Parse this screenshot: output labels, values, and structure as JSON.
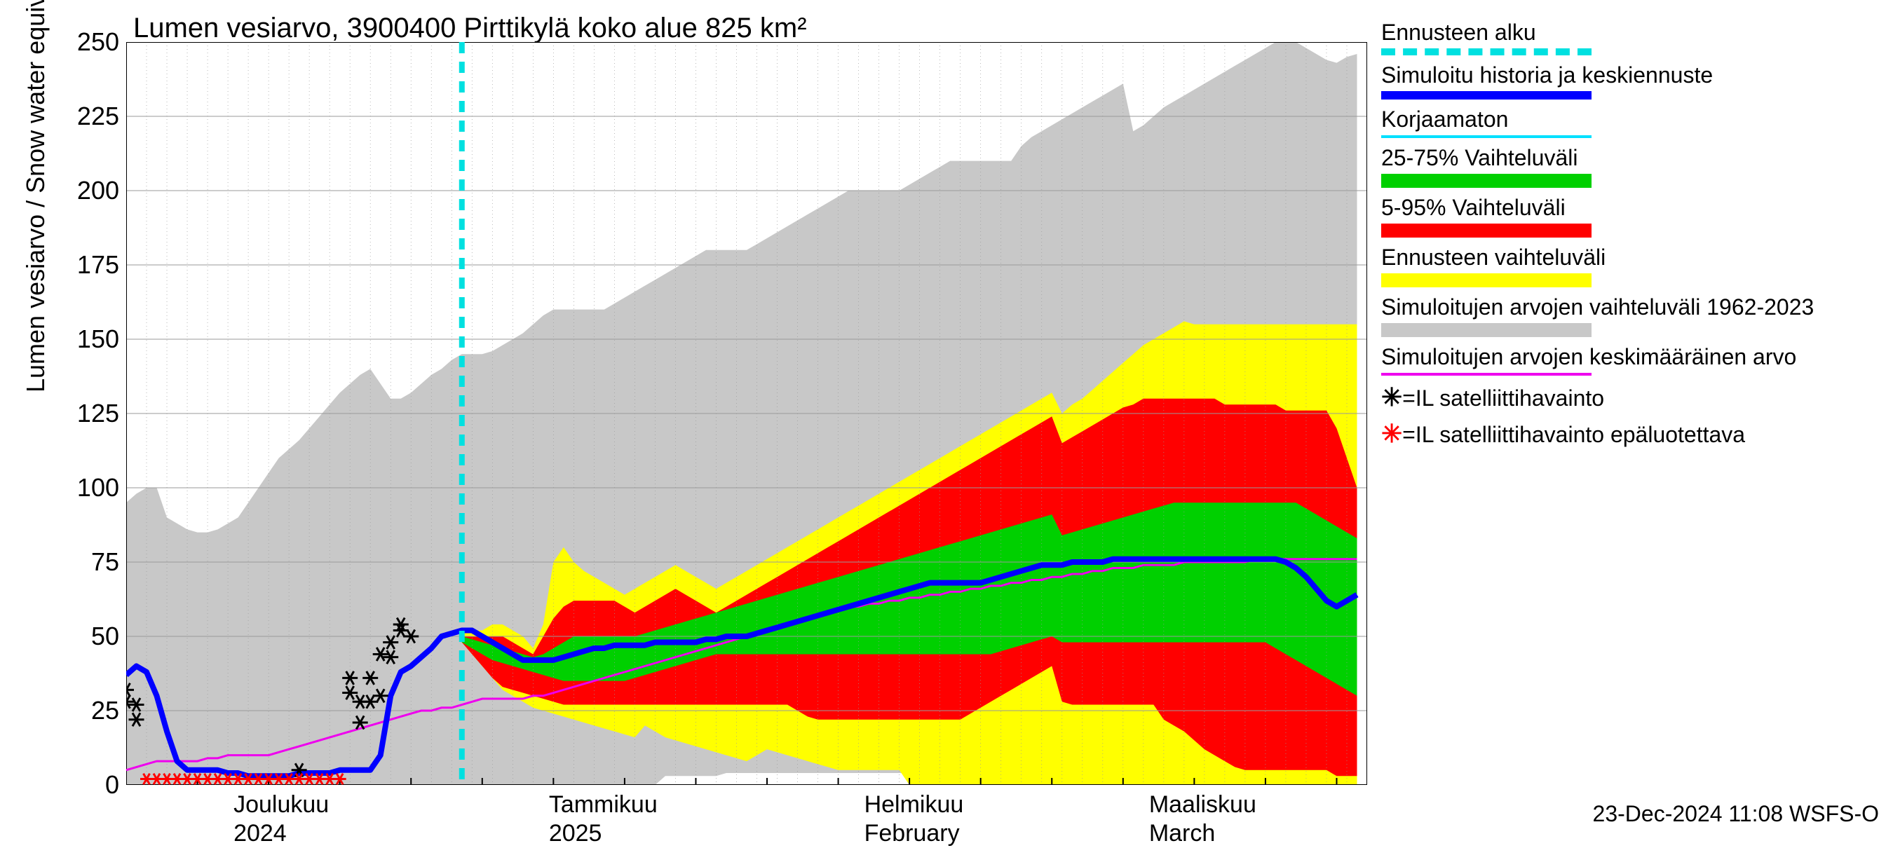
{
  "chart": {
    "type": "area-line-forecast",
    "title": "Lumen vesiarvo, 3900400 Pirttikylä koko alue 825 km²",
    "ylabel": "Lumen vesiarvo / Snow water equiv.    mm",
    "ylim": [
      0,
      250
    ],
    "ytick_step": 25,
    "yticks": [
      0,
      25,
      50,
      75,
      100,
      125,
      150,
      175,
      200,
      225,
      250
    ],
    "x_start": "2024-11-20",
    "x_end": "2025-03-22",
    "x_days": 122,
    "forecast_start_day": 33,
    "background_color": "#ffffff",
    "grid_color": "#9a9a9a",
    "minor_grid": true,
    "colors": {
      "forecast_start": "#00e0e0",
      "main_line": "#0000ff",
      "uncorrected": "#00e0ff",
      "p25_75": "#00d000",
      "p5_95": "#ff0000",
      "forecast_range": "#ffff00",
      "historical_band": "#c8c8c8",
      "historical_mean": "#ee00ee",
      "sat_black": "#000000",
      "sat_red": "#ff0000"
    },
    "line_widths": {
      "main_line": 8,
      "mean_line": 3,
      "forecast_dash": 8
    },
    "x_month_labels": [
      {
        "label_top": "Joulukuu",
        "label_bot": "2024",
        "day": 10
      },
      {
        "label_top": "Tammikuu",
        "label_bot": "2025",
        "day": 41
      },
      {
        "label_top": "Helmikuu",
        "label_bot": "February",
        "day": 72
      },
      {
        "label_top": "Maaliskuu",
        "label_bot": "March",
        "day": 100
      }
    ],
    "historical_band_upper": [
      95,
      98,
      100,
      100,
      90,
      88,
      86,
      85,
      85,
      86,
      88,
      90,
      95,
      100,
      105,
      110,
      113,
      116,
      120,
      124,
      128,
      132,
      135,
      138,
      140,
      135,
      130,
      130,
      132,
      135,
      138,
      140,
      143,
      145,
      145,
      145,
      146,
      148,
      150,
      152,
      155,
      158,
      160,
      160,
      160,
      160,
      160,
      160,
      162,
      164,
      166,
      168,
      170,
      172,
      174,
      176,
      178,
      180,
      180,
      180,
      180,
      180,
      182,
      184,
      186,
      188,
      190,
      192,
      194,
      196,
      198,
      200,
      200,
      200,
      200,
      200,
      200,
      202,
      204,
      206,
      208,
      210,
      210,
      210,
      210,
      210,
      210,
      210,
      215,
      218,
      220,
      222,
      224,
      226,
      228,
      230,
      232,
      234,
      236,
      220,
      222,
      225,
      228,
      230,
      232,
      234,
      236,
      238,
      240,
      242,
      244,
      246,
      248,
      250,
      250,
      250,
      248,
      246,
      244,
      243,
      245,
      246
    ],
    "historical_band_lower": [
      0,
      0,
      0,
      0,
      0,
      0,
      0,
      0,
      0,
      0,
      0,
      0,
      0,
      0,
      0,
      0,
      0,
      0,
      0,
      0,
      0,
      0,
      0,
      0,
      0,
      0,
      0,
      0,
      0,
      0,
      0,
      0,
      0,
      0,
      0,
      0,
      0,
      0,
      0,
      0,
      0,
      0,
      0,
      0,
      0,
      0,
      0,
      0,
      0,
      0,
      0,
      0,
      0,
      3,
      3,
      3,
      3,
      3,
      3,
      4,
      4,
      4,
      4,
      4,
      4,
      4,
      4,
      4,
      4,
      4,
      4,
      4,
      4,
      4,
      4,
      4,
      4,
      4,
      4,
      4,
      4,
      4,
      4,
      4,
      4,
      4,
      4,
      4,
      4,
      4,
      4,
      4,
      4,
      4,
      4,
      4,
      4,
      4,
      4,
      4,
      3,
      3,
      2,
      1,
      0,
      0,
      0,
      0,
      0,
      0,
      0,
      0,
      0,
      0,
      0,
      0,
      0,
      0,
      0,
      0,
      0,
      0
    ],
    "forecast_range_upper": [
      52,
      52,
      52,
      54,
      54,
      52,
      50,
      46,
      54,
      75,
      80,
      75,
      72,
      70,
      68,
      66,
      64,
      66,
      68,
      70,
      72,
      74,
      72,
      70,
      68,
      66,
      68,
      70,
      72,
      74,
      76,
      78,
      80,
      82,
      84,
      86,
      88,
      90,
      92,
      94,
      96,
      98,
      100,
      102,
      104,
      106,
      108,
      110,
      112,
      114,
      116,
      118,
      120,
      122,
      124,
      126,
      128,
      130,
      132,
      125,
      128,
      130,
      133,
      136,
      139,
      142,
      145,
      148,
      150,
      152,
      154,
      156,
      155,
      155,
      155,
      155,
      155,
      155,
      155,
      155,
      155,
      155,
      155,
      155,
      155,
      155,
      155,
      155,
      155
    ],
    "forecast_range_lower": [
      48,
      44,
      40,
      36,
      32,
      30,
      28,
      26,
      25,
      24,
      23,
      22,
      21,
      20,
      19,
      18,
      17,
      16,
      20,
      18,
      16,
      15,
      14,
      13,
      12,
      11,
      10,
      9,
      8,
      10,
      12,
      11,
      10,
      9,
      8,
      7,
      6,
      5,
      5,
      5,
      5,
      5,
      5,
      5,
      0,
      0,
      0,
      0,
      0,
      0,
      0,
      0,
      0,
      0,
      0,
      0,
      0,
      0,
      0,
      0,
      0,
      0,
      0,
      0,
      0,
      0,
      0,
      0,
      0,
      0,
      0,
      0,
      0,
      0,
      0,
      0,
      0,
      0,
      0,
      0,
      0,
      0,
      0,
      0,
      0,
      0,
      0,
      0,
      0
    ],
    "p5_95_upper": [
      50,
      50,
      50,
      50,
      50,
      48,
      46,
      44,
      50,
      56,
      60,
      62,
      62,
      62,
      62,
      62,
      60,
      58,
      60,
      62,
      64,
      66,
      64,
      62,
      60,
      58,
      60,
      62,
      64,
      66,
      68,
      70,
      72,
      74,
      76,
      78,
      80,
      82,
      84,
      86,
      88,
      90,
      92,
      94,
      96,
      98,
      100,
      102,
      104,
      106,
      108,
      110,
      112,
      114,
      116,
      118,
      120,
      122,
      124,
      115,
      117,
      119,
      121,
      123,
      125,
      127,
      128,
      130,
      130,
      130,
      130,
      130,
      130,
      130,
      130,
      128,
      128,
      128,
      128,
      128,
      128,
      126,
      126,
      126,
      126,
      126,
      120,
      110,
      100
    ],
    "p5_95_lower": [
      48,
      44,
      40,
      36,
      33,
      32,
      31,
      30,
      29,
      28,
      27,
      27,
      27,
      27,
      27,
      27,
      27,
      27,
      27,
      27,
      27,
      27,
      27,
      27,
      27,
      27,
      27,
      27,
      27,
      27,
      27,
      27,
      27,
      25,
      23,
      22,
      22,
      22,
      22,
      22,
      22,
      22,
      22,
      22,
      22,
      22,
      22,
      22,
      22,
      22,
      24,
      26,
      28,
      30,
      32,
      34,
      36,
      38,
      40,
      28,
      27,
      27,
      27,
      27,
      27,
      27,
      27,
      27,
      27,
      22,
      20,
      18,
      15,
      12,
      10,
      8,
      6,
      5,
      5,
      5,
      5,
      5,
      5,
      5,
      5,
      5,
      3,
      3,
      3
    ],
    "p25_75_upper": [
      50,
      49,
      48,
      47,
      46,
      45,
      44,
      43,
      44,
      46,
      48,
      50,
      50,
      50,
      50,
      50,
      50,
      50,
      51,
      52,
      53,
      54,
      55,
      56,
      57,
      58,
      59,
      60,
      61,
      62,
      63,
      64,
      65,
      66,
      67,
      68,
      69,
      70,
      71,
      72,
      73,
      74,
      75,
      76,
      77,
      78,
      79,
      80,
      81,
      82,
      83,
      84,
      85,
      86,
      87,
      88,
      89,
      90,
      91,
      84,
      85,
      86,
      87,
      88,
      89,
      90,
      91,
      92,
      93,
      94,
      95,
      95,
      95,
      95,
      95,
      95,
      95,
      95,
      95,
      95,
      95,
      95,
      95,
      93,
      91,
      89,
      87,
      85,
      83
    ],
    "p25_75_lower": [
      48,
      46,
      44,
      42,
      41,
      40,
      39,
      38,
      37,
      36,
      35,
      35,
      35,
      35,
      35,
      35,
      35,
      36,
      37,
      38,
      39,
      40,
      41,
      42,
      43,
      44,
      44,
      44,
      44,
      44,
      44,
      44,
      44,
      44,
      44,
      44,
      44,
      44,
      44,
      44,
      44,
      44,
      44,
      44,
      44,
      44,
      44,
      44,
      44,
      44,
      44,
      44,
      44,
      45,
      46,
      47,
      48,
      49,
      50,
      48,
      48,
      48,
      48,
      48,
      48,
      48,
      48,
      48,
      48,
      48,
      48,
      48,
      48,
      48,
      48,
      48,
      48,
      48,
      48,
      48,
      46,
      44,
      42,
      40,
      38,
      36,
      34,
      32,
      30
    ],
    "main_line": [
      37,
      40,
      38,
      30,
      18,
      8,
      5,
      5,
      5,
      5,
      4,
      4,
      3,
      3,
      3,
      3,
      3,
      4,
      4,
      4,
      4,
      5,
      5,
      5,
      5,
      10,
      30,
      38,
      40,
      43,
      46,
      50,
      51,
      52,
      52,
      50,
      48,
      46,
      44,
      42,
      42,
      42,
      42,
      43,
      44,
      45,
      46,
      46,
      47,
      47,
      47,
      47,
      48,
      48,
      48,
      48,
      48,
      49,
      49,
      50,
      50,
      50,
      51,
      52,
      53,
      54,
      55,
      56,
      57,
      58,
      59,
      60,
      61,
      62,
      63,
      64,
      65,
      66,
      67,
      68,
      68,
      68,
      68,
      68,
      68,
      69,
      70,
      71,
      72,
      73,
      74,
      74,
      74,
      75,
      75,
      75,
      75,
      76,
      76,
      76,
      76,
      76,
      76,
      76,
      76,
      76,
      76,
      76,
      76,
      76,
      76,
      76,
      76,
      76,
      75,
      73,
      70,
      66,
      62,
      60,
      62,
      64
    ],
    "historical_mean": [
      5,
      6,
      7,
      8,
      8,
      8,
      8,
      8,
      9,
      9,
      10,
      10,
      10,
      10,
      10,
      11,
      12,
      13,
      14,
      15,
      16,
      17,
      18,
      19,
      20,
      21,
      22,
      23,
      24,
      25,
      25,
      26,
      26,
      27,
      28,
      29,
      29,
      29,
      29,
      29,
      30,
      30,
      31,
      32,
      33,
      34,
      35,
      36,
      37,
      38,
      39,
      40,
      41,
      42,
      43,
      44,
      45,
      46,
      47,
      48,
      49,
      50,
      51,
      52,
      53,
      54,
      55,
      56,
      57,
      58,
      59,
      60,
      60,
      61,
      61,
      62,
      62,
      63,
      63,
      64,
      64,
      65,
      65,
      66,
      66,
      67,
      67,
      68,
      68,
      69,
      69,
      70,
      70,
      71,
      71,
      72,
      72,
      73,
      73,
      73,
      74,
      74,
      74,
      74,
      75,
      75,
      75,
      75,
      75,
      75,
      75,
      76,
      76,
      76,
      76,
      76,
      76,
      76,
      76,
      76,
      76,
      76
    ],
    "sat_black": [
      {
        "day": 0,
        "val": 28
      },
      {
        "day": 0,
        "val": 32
      },
      {
        "day": 1,
        "val": 22
      },
      {
        "day": 1,
        "val": 27
      },
      {
        "day": 22,
        "val": 31
      },
      {
        "day": 22,
        "val": 36
      },
      {
        "day": 23,
        "val": 28
      },
      {
        "day": 23,
        "val": 21
      },
      {
        "day": 24,
        "val": 28
      },
      {
        "day": 24,
        "val": 36
      },
      {
        "day": 25,
        "val": 30
      },
      {
        "day": 25,
        "val": 44
      },
      {
        "day": 26,
        "val": 43
      },
      {
        "day": 26,
        "val": 48
      },
      {
        "day": 27,
        "val": 52
      },
      {
        "day": 27,
        "val": 54
      },
      {
        "day": 28,
        "val": 50
      },
      {
        "day": 17,
        "val": 5
      }
    ],
    "sat_red": [
      {
        "day": 2,
        "val": 2
      },
      {
        "day": 3,
        "val": 2
      },
      {
        "day": 4,
        "val": 2
      },
      {
        "day": 5,
        "val": 2
      },
      {
        "day": 6,
        "val": 2
      },
      {
        "day": 7,
        "val": 2
      },
      {
        "day": 8,
        "val": 2
      },
      {
        "day": 9,
        "val": 2
      },
      {
        "day": 10,
        "val": 2
      },
      {
        "day": 11,
        "val": 2
      },
      {
        "day": 12,
        "val": 2
      },
      {
        "day": 13,
        "val": 2
      },
      {
        "day": 14,
        "val": 2
      },
      {
        "day": 15,
        "val": 2
      },
      {
        "day": 16,
        "val": 2
      },
      {
        "day": 17,
        "val": 2
      },
      {
        "day": 18,
        "val": 2
      },
      {
        "day": 19,
        "val": 2
      },
      {
        "day": 20,
        "val": 2
      },
      {
        "day": 21,
        "val": 2
      }
    ]
  },
  "legend": {
    "items": [
      {
        "label": "Ennusteen alku",
        "type": "dash",
        "color": "#00e0e0"
      },
      {
        "label": "Simuloitu historia ja keskiennuste",
        "type": "line",
        "color": "#0000ff"
      },
      {
        "label": "Korjaamaton",
        "type": "thinline",
        "color": "#00e0ff"
      },
      {
        "label": "25-75% Vaihteluväli",
        "type": "fill",
        "color": "#00d000"
      },
      {
        "label": "5-95% Vaihteluväli",
        "type": "fill",
        "color": "#ff0000"
      },
      {
        "label": "Ennusteen vaihteluväli",
        "type": "fill",
        "color": "#ffff00"
      },
      {
        "label": "Simuloitujen arvojen vaihteluväli 1962-2023",
        "type": "fill",
        "color": "#c8c8c8"
      },
      {
        "label": "Simuloitujen arvojen keskimääräinen arvo",
        "type": "thinline",
        "color": "#ee00ee"
      },
      {
        "label": "=IL satelliittihavainto",
        "type": "marker",
        "marker": "✳",
        "color": "#000000"
      },
      {
        "label": "=IL satelliittihavainto epäluotettava",
        "type": "marker",
        "marker": "✳",
        "color": "#ff0000"
      }
    ]
  },
  "timestamp": "23-Dec-2024 11:08 WSFS-O"
}
